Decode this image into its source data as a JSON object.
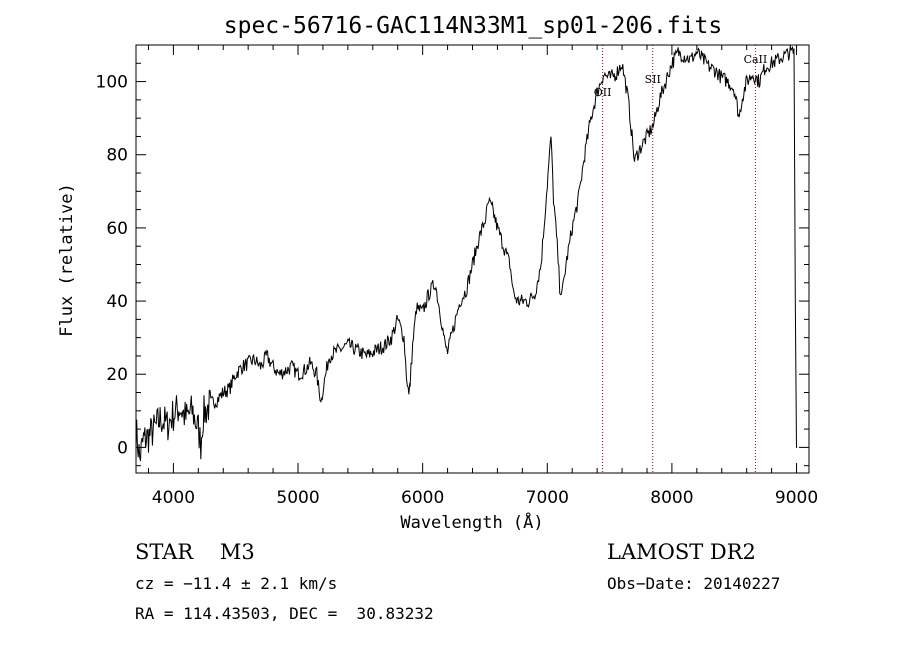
{
  "chart_data": {
    "type": "line",
    "title": "spec-56716-GAC114N33M1_sp01-206.fits",
    "xlabel": "Wavelength (Å)",
    "ylabel": "Flux (relative)",
    "xlim": [
      3700,
      9100
    ],
    "ylim": [
      -7,
      110
    ],
    "xticks": [
      4000,
      5000,
      6000,
      7000,
      8000,
      9000
    ],
    "yticks": [
      0,
      20,
      40,
      60,
      80,
      100
    ],
    "grid": false,
    "series": [
      {
        "color": "#000000",
        "x": [
          3700,
          3730,
          3760,
          3800,
          3850,
          3900,
          3950,
          4000,
          4050,
          4100,
          4150,
          4200,
          4220,
          4240,
          4300,
          4350,
          4400,
          4450,
          4500,
          4550,
          4600,
          4650,
          4700,
          4750,
          4800,
          4850,
          4900,
          4950,
          5000,
          5050,
          5100,
          5150,
          5170,
          5190,
          5200,
          5250,
          5300,
          5350,
          5400,
          5450,
          5500,
          5550,
          5600,
          5650,
          5700,
          5750,
          5800,
          5850,
          5870,
          5890,
          5900,
          5920,
          5950,
          6000,
          6050,
          6100,
          6150,
          6180,
          6200,
          6250,
          6300,
          6350,
          6400,
          6450,
          6500,
          6530,
          6560,
          6600,
          6650,
          6700,
          6730,
          6760,
          6800,
          6850,
          6900,
          6950,
          7000,
          7030,
          7050,
          7080,
          7100,
          7120,
          7150,
          7200,
          7250,
          7300,
          7350,
          7400,
          7450,
          7500,
          7550,
          7600,
          7650,
          7680,
          7700,
          7720,
          7750,
          7800,
          7850,
          7900,
          7950,
          8000,
          8050,
          8100,
          8150,
          8200,
          8250,
          8300,
          8350,
          8400,
          8450,
          8500,
          8540,
          8560,
          8600,
          8650,
          8700,
          8750,
          8800,
          8850,
          8900,
          8950,
          8980,
          8990,
          9000,
          9005
        ],
        "y": [
          5,
          -3,
          2,
          3,
          5,
          8,
          6,
          9,
          11,
          8,
          10,
          5,
          1,
          9,
          12,
          13,
          15,
          16,
          20,
          22,
          23,
          24,
          22,
          25,
          22,
          20,
          21,
          22,
          20,
          21,
          23,
          20,
          15,
          13,
          16,
          25,
          26,
          27,
          28,
          27,
          26,
          25,
          26,
          27,
          28,
          30,
          35,
          30,
          20,
          14,
          18,
          28,
          38,
          37,
          42,
          45,
          35,
          28,
          26,
          33,
          40,
          43,
          50,
          57,
          62,
          67,
          65,
          60,
          55,
          50,
          42,
          40,
          40,
          40,
          42,
          50,
          72,
          85,
          68,
          55,
          44,
          42,
          50,
          60,
          68,
          80,
          90,
          97,
          102,
          101,
          102,
          105,
          95,
          85,
          78,
          80,
          82,
          85,
          88,
          95,
          100,
          105,
          108,
          107,
          106,
          108,
          106,
          104,
          103,
          101,
          100,
          98,
          90,
          95,
          100,
          102,
          100,
          104,
          105,
          106,
          107,
          108,
          108,
          40,
          0,
          0
        ]
      }
    ],
    "lines": [
      {
        "label": "OII",
        "x": 7444
      },
      {
        "label": "SII",
        "x": 7846
      },
      {
        "label": "CaII",
        "x": 8670
      }
    ]
  },
  "footer": {
    "object": "STAR    M3",
    "survey": "LAMOST DR2",
    "cz": "cz = −11.4 ± 2.1 km/s",
    "obs_date": "Obs−Date: 20140227",
    "coords": "RA = 114.43503, DEC =  30.83232"
  }
}
